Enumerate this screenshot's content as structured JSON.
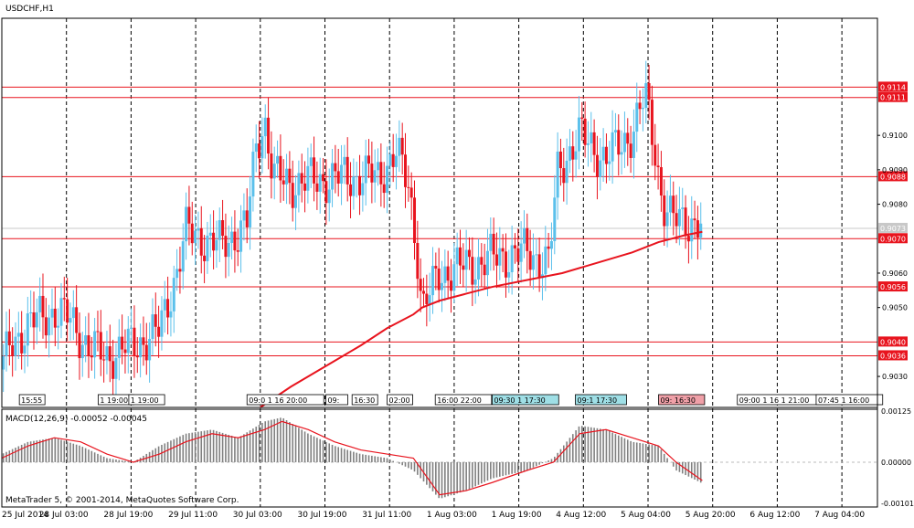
{
  "symbol_label": "USDCHF,H1",
  "macd_label": "MACD(12,26,9) -0.00052 -0.00045",
  "copyright": "MetaTrader 5, © 2001-2014, MetaQuotes Software Corp.",
  "colors": {
    "background": "#ffffff",
    "frame": "#000000",
    "bull_candle": "#5bc0eb",
    "bear_candle": "#e8141e",
    "moving_average": "#e8141e",
    "level_line": "#e8141e",
    "level_tag_bg": "#e8141e",
    "bid_tag_bg": "#c8c8c8",
    "macd_histogram": "#808080",
    "macd_signal": "#e8141e",
    "event_flag_cyan": "#9fdfe6",
    "event_flag_pink": "#f0a0a8",
    "vertical_grid": "#000000"
  },
  "chart_data": [
    {
      "type": "candlestick",
      "title": "USDCHF,H1",
      "timeframe": "H1",
      "ylim": [
        0.9021,
        0.9134
      ],
      "y_ticks": [
        "0.9030",
        "0.9050",
        "0.9060",
        "0.9080",
        "0.9090",
        "0.9100"
      ],
      "x_labels": [
        "25 Jul 2014",
        "28 Jul 03:00",
        "28 Jul 19:00",
        "29 Jul 11:00",
        "30 Jul 03:00",
        "30 Jul 19:00",
        "31 Jul 11:00",
        "1 Aug 03:00",
        "1 Aug 19:00",
        "4 Aug 12:00",
        "5 Aug 04:00",
        "5 Aug 20:00",
        "6 Aug 12:00",
        "7 Aug 04:00"
      ],
      "horizontal_levels": [
        "0.9114",
        "0.9111",
        "0.9088",
        "0.9070",
        "0.9056",
        "0.9040",
        "0.9036"
      ],
      "bid_price": "0.9073",
      "moving_average": {
        "x": [
          0.295,
          0.33,
          0.37,
          0.41,
          0.44,
          0.47,
          0.48,
          0.5,
          0.53,
          0.56,
          0.6,
          0.64,
          0.68,
          0.72,
          0.75,
          0.78,
          0.8
        ],
        "y": [
          0.9021,
          0.9027,
          0.9033,
          0.9039,
          0.9044,
          0.9048,
          0.905,
          0.9052,
          0.9054,
          0.9056,
          0.9058,
          0.906,
          0.9063,
          0.9066,
          0.9069,
          0.9071,
          0.9072
        ]
      },
      "key_prices": {
        "x": [
          0.0,
          0.01,
          0.03,
          0.06,
          0.08,
          0.1,
          0.12,
          0.15,
          0.18,
          0.2,
          0.21,
          0.25,
          0.28,
          0.29,
          0.3,
          0.31,
          0.33,
          0.36,
          0.4,
          0.43,
          0.45,
          0.465,
          0.475,
          0.48,
          0.5,
          0.53,
          0.57,
          0.6,
          0.625,
          0.635,
          0.66,
          0.69,
          0.72,
          0.735,
          0.745,
          0.755,
          0.765,
          0.78,
          0.8
        ],
        "y": [
          0.9032,
          0.9039,
          0.9045,
          0.9049,
          0.9046,
          0.9038,
          0.9036,
          0.9039,
          0.9043,
          0.9061,
          0.9072,
          0.9068,
          0.9074,
          0.9096,
          0.9105,
          0.9088,
          0.9086,
          0.9087,
          0.9088,
          0.9088,
          0.9095,
          0.9085,
          0.9065,
          0.9049,
          0.906,
          0.9062,
          0.9065,
          0.9066,
          0.9063,
          0.909,
          0.91,
          0.9093,
          0.9101,
          0.9111,
          0.9098,
          0.908,
          0.9075,
          0.9076,
          0.9073
        ]
      },
      "event_tags": [
        "15:55",
        "1 19:00",
        "1 19:00",
        "09:0 1 16 20:00",
        "09:",
        "16:30",
        "02:00",
        "16:00 22:00",
        "09:30 1 17:30",
        "09:1 17:30",
        "09: 16:30",
        "09:00 1 16 1 21:00",
        "07:45 1 16:00"
      ]
    },
    {
      "type": "bar",
      "title": "MACD(12,26,9) -0.00052 -0.00045",
      "ylim": [
        -0.0011,
        0.0013
      ],
      "y_ticks": [
        "0.00125",
        "0.00000",
        "-0.00101"
      ],
      "histogram_envelope": {
        "x": [
          0.0,
          0.03,
          0.06,
          0.09,
          0.12,
          0.15,
          0.18,
          0.21,
          0.24,
          0.27,
          0.3,
          0.32,
          0.35,
          0.38,
          0.41,
          0.44,
          0.47,
          0.5,
          0.53,
          0.56,
          0.6,
          0.63,
          0.66,
          0.69,
          0.72,
          0.75,
          0.77,
          0.8
        ],
        "y": [
          0.0002,
          0.0005,
          0.0006,
          0.0004,
          0.0001,
          0.0,
          0.0004,
          0.0007,
          0.0008,
          0.0006,
          0.001,
          0.0011,
          0.0007,
          0.0004,
          0.0002,
          0.0001,
          -0.0002,
          -0.0009,
          -0.0007,
          -0.0004,
          -0.0002,
          0.0001,
          0.0009,
          0.0008,
          0.0005,
          0.0004,
          -0.0002,
          -0.00052
        ]
      },
      "signal": {
        "x": [
          0.0,
          0.03,
          0.06,
          0.09,
          0.12,
          0.15,
          0.18,
          0.21,
          0.24,
          0.27,
          0.3,
          0.32,
          0.35,
          0.38,
          0.41,
          0.44,
          0.47,
          0.5,
          0.53,
          0.56,
          0.6,
          0.63,
          0.66,
          0.69,
          0.72,
          0.75,
          0.77,
          0.8
        ],
        "y": [
          0.0001,
          0.0004,
          0.0006,
          0.0005,
          0.0002,
          0.0,
          0.0002,
          0.0005,
          0.0007,
          0.0006,
          0.0008,
          0.001,
          0.0008,
          0.0005,
          0.0003,
          0.0002,
          0.0001,
          -0.0008,
          -0.0007,
          -0.0005,
          -0.0002,
          0.0,
          0.0007,
          0.0008,
          0.0006,
          0.0004,
          0.0,
          -0.00045
        ]
      }
    }
  ]
}
